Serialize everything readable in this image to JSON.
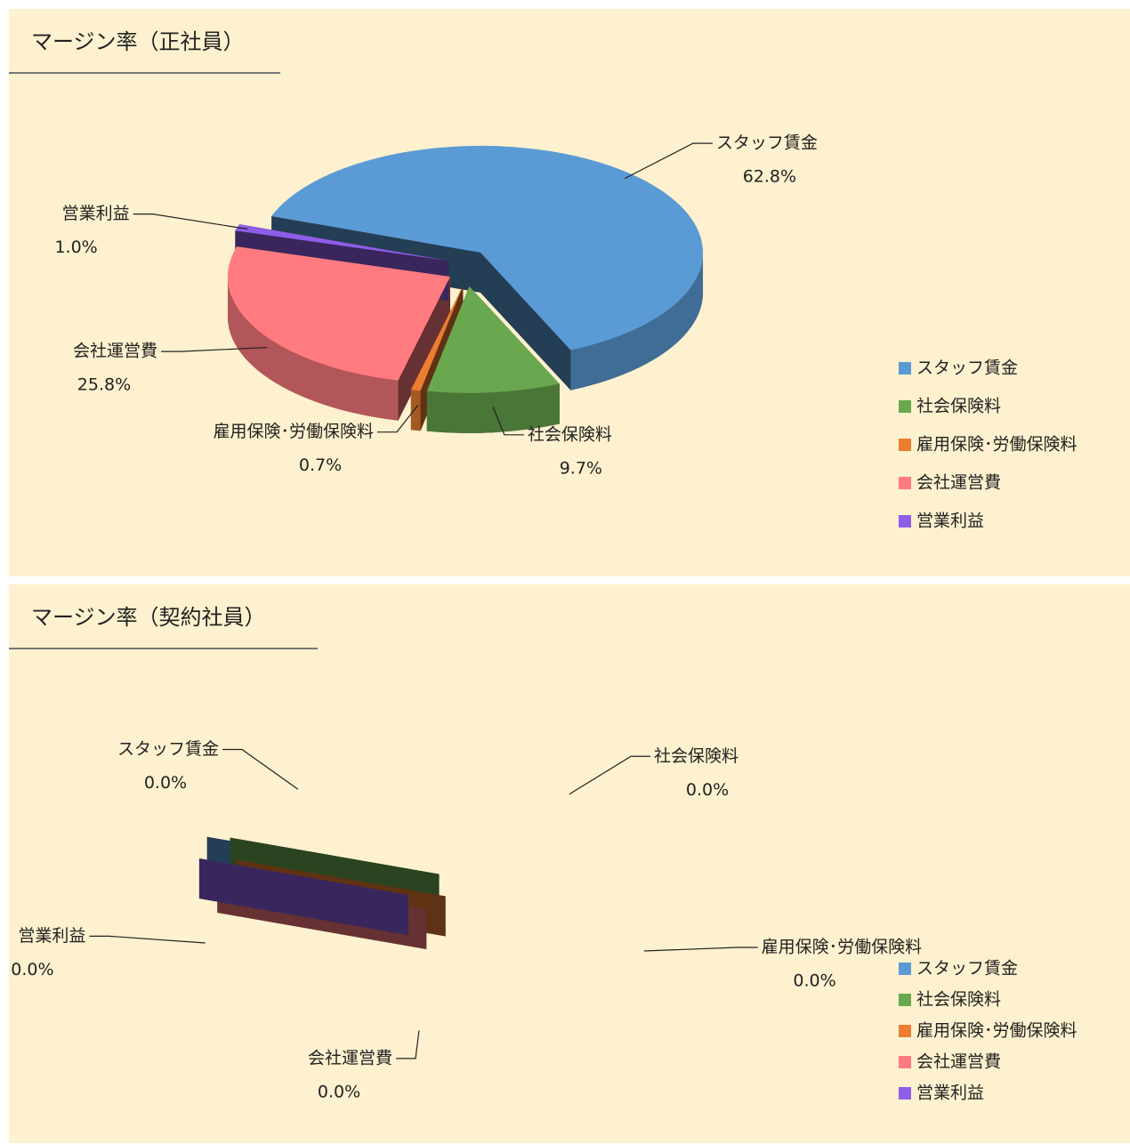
{
  "chart_data": [
    {
      "type": "pie",
      "title": "マージン率（正社員）",
      "categories": [
        "スタッフ賃金",
        "社会保険料",
        "雇用保険･労働保険料",
        "会社運営費",
        "営業利益"
      ],
      "values": [
        62.8,
        9.7,
        0.7,
        25.8,
        1.0
      ],
      "value_labels": [
        "62.8%",
        "9.7%",
        "0.7%",
        "25.8%",
        "1.0%"
      ],
      "colors": [
        "#5b9bd5",
        "#6aa84f",
        "#ed7d31",
        "#ff7b7f",
        "#8f5ee8"
      ],
      "legend": "right"
    },
    {
      "type": "pie",
      "title": "マージン率（契約社員）",
      "categories": [
        "スタッフ賃金",
        "社会保険料",
        "雇用保険･労働保険料",
        "会社運営費",
        "営業利益"
      ],
      "values": [
        0,
        0,
        0,
        0,
        0
      ],
      "value_labels": [
        "0.0%",
        "0.0%",
        "0.0%",
        "0.0%",
        "0.0%"
      ],
      "colors": [
        "#5b9bd5",
        "#6aa84f",
        "#ed7d31",
        "#ff7b7f",
        "#8f5ee8"
      ],
      "legend": "right"
    }
  ]
}
